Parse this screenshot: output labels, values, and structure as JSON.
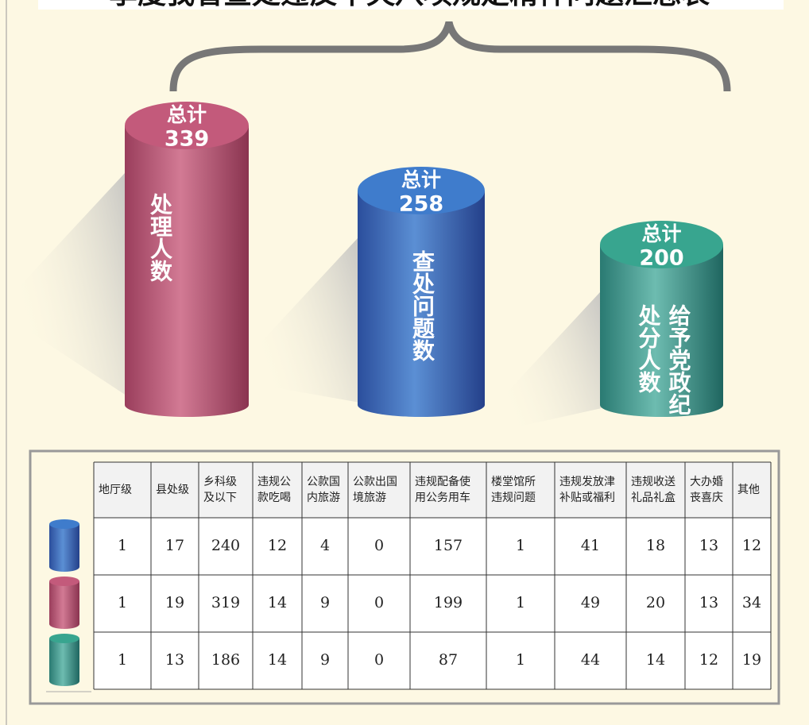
{
  "title": "季度我省查处违反中央八项规定精神问题汇总表",
  "summary": [
    {
      "label": "总计",
      "total": "339",
      "caption": [
        "处理人数"
      ]
    },
    {
      "label": "总计",
      "total": "258",
      "caption": [
        "查处问题数"
      ]
    },
    {
      "label": "总计",
      "total": "200",
      "caption": [
        "给予党政纪",
        "处分人数"
      ]
    }
  ],
  "table": {
    "header": [
      [
        "地厅级"
      ],
      [
        "县处级"
      ],
      [
        "乡科级",
        "及以下"
      ],
      [
        "违规公",
        "款吃喝"
      ],
      [
        "公款国",
        "内旅游"
      ],
      [
        "公款出国",
        "境旅游"
      ],
      [
        "违规配备使",
        "用公务用车"
      ],
      [
        "楼堂馆所",
        "违规问题"
      ],
      [
        "违规发放津",
        "补贴或福利"
      ],
      [
        "违规收送",
        "礼品礼盒"
      ],
      [
        "大办婚",
        "丧喜庆"
      ],
      [
        "其他"
      ]
    ],
    "rows": [
      [
        1,
        17,
        240,
        12,
        4,
        0,
        157,
        1,
        41,
        18,
        13,
        12
      ],
      [
        1,
        19,
        319,
        14,
        9,
        0,
        199,
        1,
        49,
        20,
        13,
        34
      ],
      [
        1,
        13,
        186,
        14,
        9,
        0,
        87,
        1,
        44,
        14,
        12,
        19
      ]
    ]
  }
}
